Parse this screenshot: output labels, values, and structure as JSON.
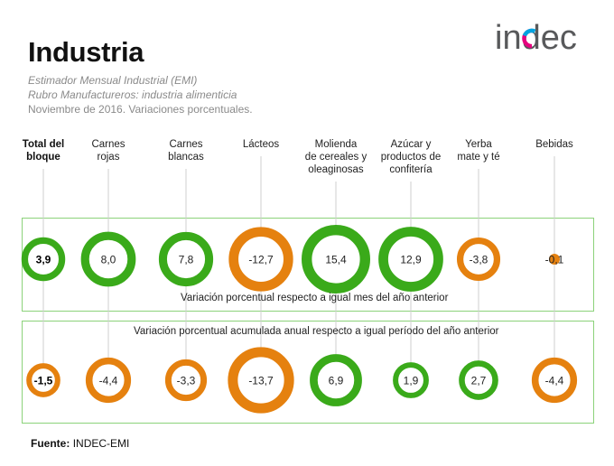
{
  "header": {
    "title": "Industria",
    "subtitle_1": "Estimador Mensual Industrial (EMI)",
    "subtitle_2": "Rubro Manufactureros: industria alimenticia",
    "subtitle_3": "Noviembre de 2016. Variaciones porcentuales.",
    "logo_text": "indec"
  },
  "footer": {
    "source_label": "Fuente:",
    "source_value": "INDEC-EMI"
  },
  "colors": {
    "positive": "#3aaa1a",
    "negative": "#e5810f",
    "box_border": "#8cd27a",
    "guide_line": "#cfcfcf"
  },
  "chart_data": {
    "type": "bubble-ring",
    "categories": [
      "Total del bloque",
      "Carnes rojas",
      "Carnes blancas",
      "Lácteos",
      "Molienda de cereales y oleaginosas",
      "Azúcar y productos de confitería",
      "Yerba mate y té",
      "Bebidas"
    ],
    "category_lines": [
      [
        "Total del",
        "bloque"
      ],
      [
        "Carnes",
        "rojas"
      ],
      [
        "Carnes",
        "blancas"
      ],
      [
        "Lácteos"
      ],
      [
        "Molienda",
        "de cereales y",
        "oleaginosas"
      ],
      [
        "Azúcar y",
        "productos de",
        "confitería"
      ],
      [
        "Yerba",
        "mate y té"
      ],
      [
        "Bebidas"
      ]
    ],
    "series": [
      {
        "name": "Variación porcentual respecto a igual mes del año anterior",
        "values": [
          3.9,
          8.0,
          7.8,
          -12.7,
          15.4,
          12.9,
          -3.8,
          -0.1
        ],
        "labels": [
          "3,9",
          "8,0",
          "7,8",
          "-12,7",
          "15,4",
          "12,9",
          "-3,8",
          "-0,1"
        ]
      },
      {
        "name": "Variación porcentual acumulada anual respecto a igual período del año anterior",
        "values": [
          -1.5,
          -4.4,
          -3.3,
          -13.7,
          6.9,
          1.9,
          2.7,
          -4.4
        ],
        "labels": [
          "-1,5",
          "-4,4",
          "-3,3",
          "-13,7",
          "6,9",
          "1,9",
          "2,7",
          "-4,4"
        ]
      }
    ],
    "title": "Industria",
    "encoding": "ring size proportional to value magnitude; green positive, orange negative"
  }
}
